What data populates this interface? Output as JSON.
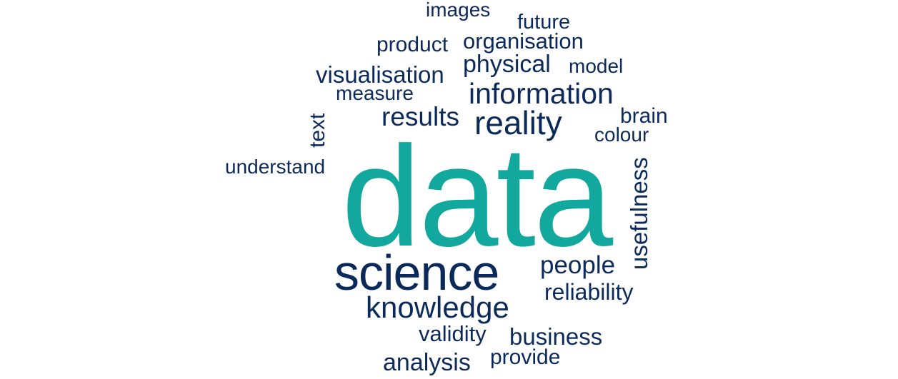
{
  "word_cloud": {
    "colors": {
      "primary": "#0b2a5b",
      "accent": "#13a89e",
      "background": "#ffffff"
    },
    "words": {
      "data": "data",
      "science": "science",
      "knowledge": "knowledge",
      "information": "information",
      "reality": "reality",
      "results": "results",
      "visualisation": "visualisation",
      "physical": "physical",
      "organisation": "organisation",
      "product": "product",
      "future": "future",
      "images": "images",
      "model": "model",
      "measure": "measure",
      "brain": "brain",
      "colour": "colour",
      "understand": "understand",
      "text": "text",
      "usefulness": "usefulness",
      "people": "people",
      "reliability": "reliability",
      "validity": "validity",
      "business": "business",
      "analysis": "analysis",
      "provide": "provide"
    }
  }
}
